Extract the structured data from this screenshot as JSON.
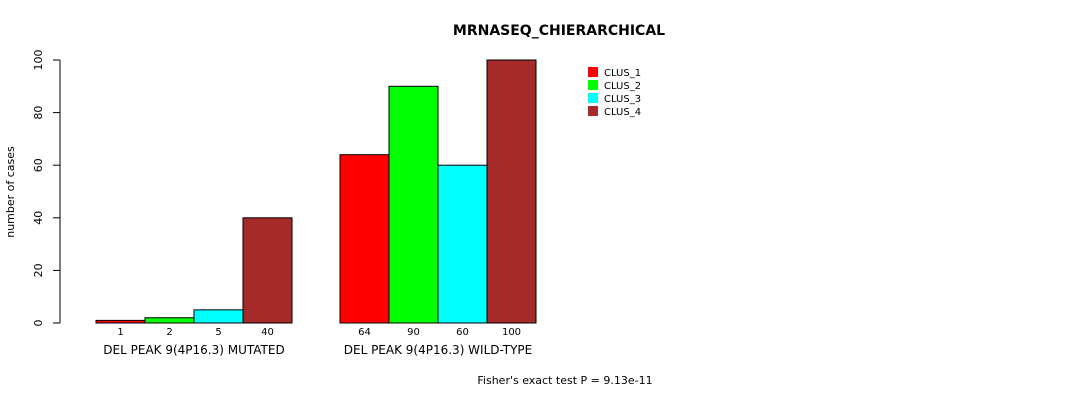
{
  "chart_data": {
    "type": "bar",
    "title": "MRNASEQ_CHIERARCHICAL",
    "ylabel": "number of cases",
    "xlabel": "",
    "ylim": [
      0,
      100
    ],
    "yticks": [
      0,
      20,
      40,
      60,
      80,
      100
    ],
    "grid": false,
    "legend_position": "top-right",
    "categories": [
      "DEL PEAK  9(4P16.3) MUTATED",
      "DEL PEAK  9(4P16.3) WILD-TYPE"
    ],
    "series": [
      {
        "name": "CLUS_1",
        "color": "#ff0000",
        "values": [
          1,
          64
        ]
      },
      {
        "name": "CLUS_2",
        "color": "#00ff00",
        "values": [
          2,
          90
        ]
      },
      {
        "name": "CLUS_3",
        "color": "#00ffff",
        "values": [
          5,
          60
        ]
      },
      {
        "name": "CLUS_4",
        "color": "#a52a2a",
        "values": [
          40,
          100
        ]
      }
    ],
    "annotation": "Fisher's exact test P = 9.13e-11"
  }
}
